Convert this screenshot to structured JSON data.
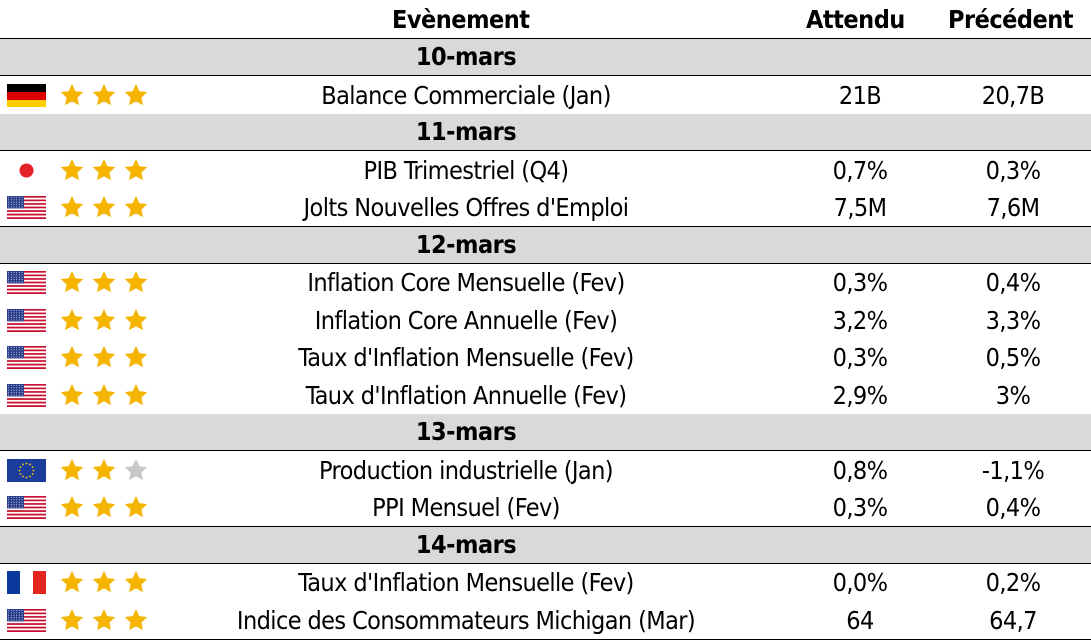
{
  "header": {
    "event": "Evènement",
    "expected": "Attendu",
    "previous": "Précédent"
  },
  "days": [
    {
      "date": "10-mars",
      "events": [
        {
          "flag": "germany-flag-icon",
          "stars": 3,
          "event": "Balance Commerciale (Jan)",
          "expected": "21B",
          "previous": "20,7B"
        }
      ]
    },
    {
      "date": "11-mars",
      "events": [
        {
          "flag": "japan-flag-icon",
          "stars": 3,
          "event": "PIB Trimestriel (Q4)",
          "expected": "0,7%",
          "previous": "0,3%"
        },
        {
          "flag": "usa-flag-icon",
          "stars": 3,
          "event": "Jolts Nouvelles Offres d'Emploi",
          "expected": "7,5M",
          "previous": "7,6M"
        }
      ]
    },
    {
      "date": "12-mars",
      "events": [
        {
          "flag": "usa-flag-icon",
          "stars": 3,
          "event": "Inflation Core Mensuelle (Fev)",
          "expected": "0,3%",
          "previous": "0,4%"
        },
        {
          "flag": "usa-flag-icon",
          "stars": 3,
          "event": "Inflation Core Annuelle (Fev)",
          "expected": "3,2%",
          "previous": "3,3%"
        },
        {
          "flag": "usa-flag-icon",
          "stars": 3,
          "event": "Taux d'Inflation Mensuelle (Fev)",
          "expected": "0,3%",
          "previous": "0,5%"
        },
        {
          "flag": "usa-flag-icon",
          "stars": 3,
          "event": "Taux d'Inflation Annuelle (Fev)",
          "expected": "2,9%",
          "previous": "3%"
        }
      ]
    },
    {
      "date": "13-mars",
      "events": [
        {
          "flag": "eu-flag-icon",
          "stars": 2,
          "event": "Production industrielle (Jan)",
          "expected": "0,8%",
          "previous": "-1,1%"
        },
        {
          "flag": "usa-flag-icon",
          "stars": 3,
          "event": "PPI Mensuel (Fev)",
          "expected": "0,3%",
          "previous": "0,4%"
        }
      ]
    },
    {
      "date": "14-mars",
      "events": [
        {
          "flag": "france-flag-icon",
          "stars": 3,
          "event": "Taux d'Inflation Mensuelle (Fev)",
          "expected": "0,0%",
          "previous": "0,2%"
        },
        {
          "flag": "usa-flag-icon",
          "stars": 3,
          "event": "Indice des Consommateurs Michigan (Mar)",
          "expected": "64",
          "previous": "64,7"
        }
      ]
    }
  ],
  "colors": {
    "date_row_bg": "#d9d9d9",
    "star_on": "#f5b400",
    "star_off": "#c8c8c8"
  }
}
